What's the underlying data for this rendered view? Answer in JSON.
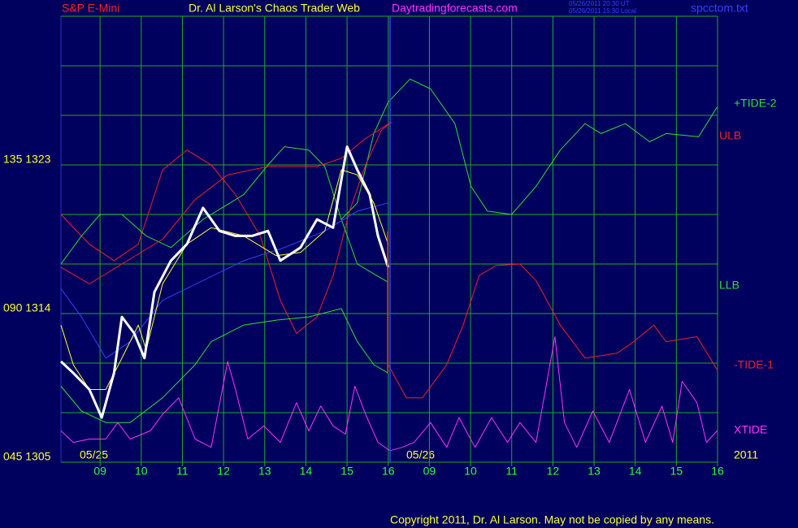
{
  "chart_data": {
    "type": "line",
    "title": "S&P E-Mini",
    "subtitle": "Dr. Al Larson's Chaos Trader Web",
    "site": "Daytradingforecasts.com",
    "timestamps": [
      "05/26/2011 20:30 UT",
      "05/26/2011 15:30 Local"
    ],
    "file": "spcctom.txt",
    "copyright": "Copyright 2011, Dr. Al Larson. May not be copied by any means.",
    "annotations": [
      "05/25",
      "05/26",
      "2011"
    ],
    "xlim": [
      -0.95,
      15
    ],
    "xticks": [
      {
        "value": 0,
        "label": "09"
      },
      {
        "value": 1,
        "label": "10"
      },
      {
        "value": 2,
        "label": "11"
      },
      {
        "value": 3,
        "label": "12"
      },
      {
        "value": 4,
        "label": "13"
      },
      {
        "value": 5,
        "label": "14"
      },
      {
        "value": 6,
        "label": "15"
      },
      {
        "value": 7,
        "label": "16"
      },
      {
        "value": 8,
        "label": "09"
      },
      {
        "value": 9,
        "label": "10"
      },
      {
        "value": 10,
        "label": "11"
      },
      {
        "value": 11,
        "label": "12"
      },
      {
        "value": 12,
        "label": "13"
      },
      {
        "value": 13,
        "label": "14"
      },
      {
        "value": 14,
        "label": "15"
      },
      {
        "value": 15,
        "label": "16"
      }
    ],
    "ylim": [
      1305,
      1332
    ],
    "yticks": [
      {
        "value": 1323,
        "label": "135 1323"
      },
      {
        "value": 1314,
        "label": "090 1314"
      },
      {
        "value": 1305,
        "label": "045 1305"
      }
    ],
    "ygrid": [
      1305,
      1308,
      1311,
      1314,
      1317,
      1320,
      1323,
      1326,
      1329,
      1332
    ],
    "grid": true,
    "series": [
      {
        "name": "+TIDE-2",
        "color": "#33dd33",
        "x": [
          5.86,
          6.25,
          6.65,
          7.0,
          7.53,
          8.03,
          8.62,
          9.01,
          9.41,
          10.0,
          10.59,
          11.18,
          11.78,
          12.17,
          12.76,
          13.35,
          13.75,
          14.54,
          14.99
        ],
        "values": [
          1319.7,
          1320.7,
          1324.9,
          1326.8,
          1328.2,
          1327.6,
          1325.5,
          1321.7,
          1320.2,
          1320.0,
          1321.7,
          1323.9,
          1325.5,
          1324.9,
          1325.5,
          1324.4,
          1324.9,
          1324.7,
          1326.5
        ]
      },
      {
        "name": "ULB",
        "color": "#ee2222",
        "x": [
          -0.95,
          -0.26,
          0.34,
          0.93,
          1.52,
          2.11,
          2.7,
          3.29,
          3.89,
          4.38,
          4.77,
          5.27,
          5.66,
          6.06,
          6.45,
          6.84,
          7.08
        ],
        "values": [
          1320.0,
          1318.2,
          1317.2,
          1318.2,
          1322.7,
          1323.9,
          1323.0,
          1321.2,
          1318.7,
          1314.8,
          1312.8,
          1313.8,
          1316.3,
          1320.2,
          1323.0,
          1325.1,
          1325.6
        ]
      },
      {
        "name": "LLB",
        "color": "#33dd33",
        "x": [
          -0.95,
          -0.45,
          0,
          0.53,
          1.12,
          1.72,
          2.5,
          3.49,
          4.08,
          4.48,
          5.07,
          5.46,
          5.86,
          6.25,
          6.65,
          7.0
        ],
        "values": [
          1317.0,
          1318.7,
          1320.0,
          1320.0,
          1318.7,
          1318.0,
          1319.7,
          1321.2,
          1323.0,
          1324.1,
          1323.9,
          1322.9,
          1319.7,
          1317.0,
          1316.4,
          1315.9
        ]
      },
      {
        "name": "-TIDE-1",
        "color": "#ee2222",
        "x": [
          7.0,
          7.44,
          7.83,
          8.42,
          8.82,
          9.21,
          9.61,
          10.2,
          10.59,
          11.18,
          11.78,
          12.56,
          12.96,
          13.45,
          13.75,
          14.5,
          14.99
        ],
        "values": [
          1310.9,
          1308.9,
          1308.9,
          1310.9,
          1313.3,
          1316.3,
          1316.9,
          1317.0,
          1316.0,
          1313.3,
          1311.3,
          1311.6,
          1312.3,
          1313.3,
          1312.3,
          1312.6,
          1310.6
        ]
      },
      {
        "name": "XTIDE",
        "color": "#ff33ff",
        "x": [
          -0.95,
          -0.65,
          -0.26,
          0.14,
          0.43,
          0.73,
          1.22,
          1.52,
          1.91,
          2.31,
          2.7,
          3.1,
          3.29,
          3.59,
          3.98,
          4.38,
          4.77,
          5.07,
          5.36,
          5.66,
          5.96,
          6.19,
          6.45,
          6.75,
          7.04,
          7.34,
          7.63,
          8.03,
          8.42,
          8.72,
          9.11,
          9.51,
          9.9,
          10.2,
          10.59,
          11.05,
          11.28,
          11.58,
          11.97,
          12.37,
          12.86,
          13.25,
          13.65,
          13.91,
          14.14,
          14.5,
          14.73,
          14.99
        ],
        "values": [
          1306.9,
          1306.2,
          1306.4,
          1306.4,
          1307.4,
          1306.4,
          1306.9,
          1307.9,
          1308.9,
          1306.4,
          1305.9,
          1311.1,
          1309.4,
          1306.4,
          1307.2,
          1306.2,
          1308.6,
          1306.9,
          1308.4,
          1307.2,
          1306.7,
          1309.6,
          1307.9,
          1306.2,
          1305.7,
          1305.9,
          1306.2,
          1307.4,
          1305.9,
          1307.7,
          1305.9,
          1307.7,
          1306.2,
          1307.4,
          1306.2,
          1312.6,
          1307.4,
          1305.9,
          1308.1,
          1306.2,
          1309.4,
          1306.2,
          1308.4,
          1306.2,
          1309.9,
          1308.6,
          1306.2,
          1306.9
        ]
      },
      {
        "color": "#33dd33",
        "x": [
          -0.95,
          -0.45,
          0.14,
          0.73,
          1.52,
          2.31,
          2.7,
          3.49,
          4.28,
          5.07,
          5.86,
          6.25,
          6.65,
          7.0
        ],
        "values": [
          1309.6,
          1308.1,
          1307.4,
          1307.4,
          1308.9,
          1310.9,
          1312.3,
          1313.3,
          1313.6,
          1313.8,
          1314.3,
          1312.3,
          1310.9,
          1310.4
        ]
      },
      {
        "color": "#ee2222",
        "x": [
          -0.95,
          -0.26,
          0.53,
          1.52,
          2.31,
          3.1,
          4.08,
          5.27,
          5.86,
          6.45,
          7.08
        ],
        "values": [
          1316.8,
          1315.8,
          1317.0,
          1318.5,
          1320.9,
          1322.4,
          1322.9,
          1322.9,
          1323.4,
          1324.6,
          1325.6
        ]
      },
      {
        "color": "#3344ff",
        "x": [
          -0.95,
          -0.45,
          0.14,
          0.73,
          1.52,
          2.5,
          3.49,
          4.48,
          5.46,
          6.25,
          7.0
        ],
        "values": [
          1315.5,
          1313.8,
          1311.3,
          1312.3,
          1314.8,
          1316.0,
          1317.2,
          1318.0,
          1319.0,
          1320.2,
          1320.7
        ]
      },
      {
        "color": "#ffff33",
        "x": [
          -0.95,
          -0.65,
          -0.26,
          0.14,
          0.53,
          0.93,
          1.12,
          1.52,
          2.11,
          2.7,
          3.49,
          4.28,
          4.87,
          5.46,
          5.86,
          6.25,
          6.65,
          7.0
        ],
        "values": [
          1313.3,
          1310.9,
          1309.4,
          1309.4,
          1311.3,
          1313.3,
          1311.8,
          1315.8,
          1318.2,
          1319.2,
          1318.7,
          1317.5,
          1317.7,
          1319.0,
          1322.7,
          1322.4,
          1320.7,
          1318.2
        ]
      },
      {
        "color": "#ffffff",
        "x": [
          -0.95,
          -0.65,
          -0.26,
          0.04,
          0.34,
          0.53,
          0.83,
          1.08,
          1.32,
          1.72,
          2.11,
          2.5,
          2.9,
          3.29,
          3.69,
          4.08,
          4.38,
          4.87,
          5.27,
          5.66,
          6.0,
          6.25,
          6.55,
          6.75,
          7.0
        ],
        "values": [
          1311.1,
          1310.4,
          1309.4,
          1307.7,
          1310.4,
          1313.8,
          1312.8,
          1311.3,
          1315.3,
          1317.2,
          1318.2,
          1320.4,
          1319.0,
          1318.7,
          1318.7,
          1319.0,
          1317.2,
          1318.0,
          1319.7,
          1319.2,
          1324.1,
          1322.7,
          1321.2,
          1318.7,
          1316.8
        ]
      }
    ]
  }
}
